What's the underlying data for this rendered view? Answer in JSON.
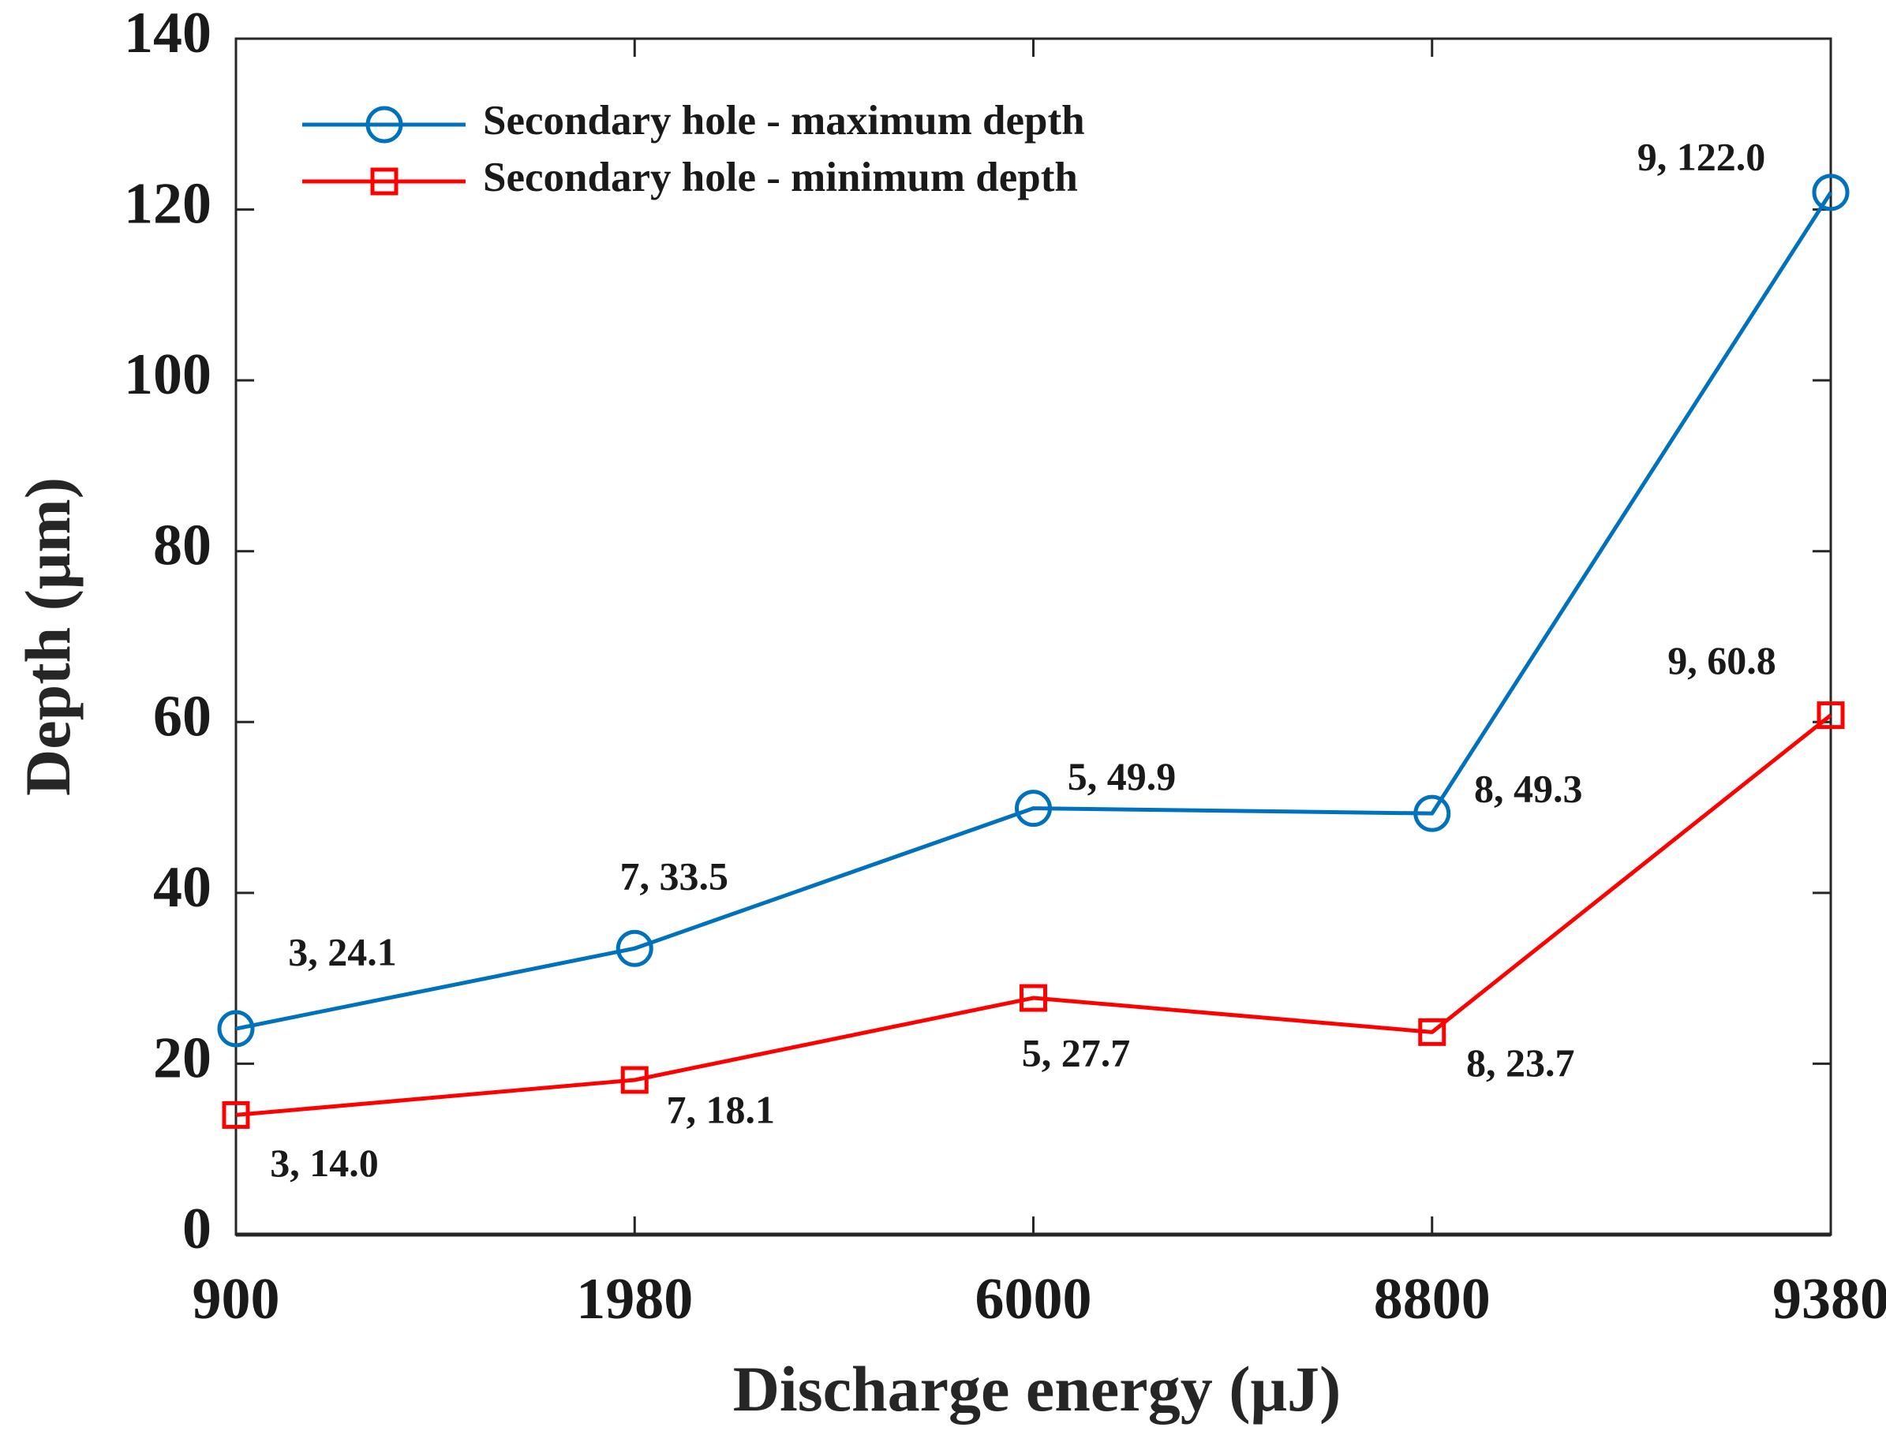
{
  "chart_data": {
    "type": "line",
    "title": "",
    "xlabel": "Discharge energy (μJ)",
    "ylabel": "Depth (μm)",
    "categories": [
      "900",
      "1980",
      "6000",
      "8800",
      "9380"
    ],
    "ylim": [
      0,
      140
    ],
    "yticks": [
      "0",
      "20",
      "40",
      "60",
      "80",
      "100",
      "120",
      "140"
    ],
    "grid": false,
    "legend_position": "top-left",
    "series": [
      {
        "name": "Secondary hole - maximum depth",
        "color": "#0072BD",
        "marker": "circle",
        "values": [
          24.1,
          33.5,
          49.9,
          49.3,
          122.0
        ],
        "labels": [
          "3, 24.1",
          "7, 33.5",
          "5, 49.9",
          "8, 49.3",
          "9, 122.0"
        ]
      },
      {
        "name": "Secondary hole - minimum depth",
        "color": "#FF0000",
        "marker": "square",
        "values": [
          14.0,
          18.1,
          27.7,
          23.7,
          60.8
        ],
        "labels": [
          "3, 14.0",
          "7, 18.1",
          "5, 27.7",
          "8, 23.7",
          "9, 60.8"
        ]
      }
    ]
  }
}
